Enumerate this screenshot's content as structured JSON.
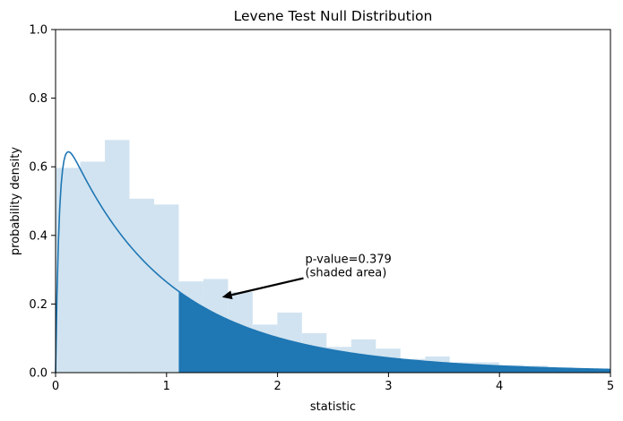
{
  "chart_data": {
    "type": "histogram",
    "title": "Levene Test Null Distribution",
    "xlabel": "statistic",
    "ylabel": "probability density",
    "xlim": [
      0,
      5
    ],
    "ylim": [
      0,
      1.0
    ],
    "xticks": [
      0,
      1,
      2,
      3,
      4,
      5
    ],
    "xtick_labels": [
      "0",
      "1",
      "2",
      "3",
      "4",
      "5"
    ],
    "yticks": [
      0,
      0.2,
      0.4,
      0.6,
      0.8,
      1.0
    ],
    "ytick_labels": [
      "0.0",
      "0.2",
      "0.4",
      "0.6",
      "0.8",
      "1.0"
    ],
    "histogram": {
      "bin_width": 0.222,
      "bins": [
        {
          "x0": 0.0,
          "x1": 0.222,
          "y": 0.597
        },
        {
          "x0": 0.222,
          "x1": 0.444,
          "y": 0.615
        },
        {
          "x0": 0.444,
          "x1": 0.666,
          "y": 0.678
        },
        {
          "x0": 0.666,
          "x1": 0.888,
          "y": 0.507
        },
        {
          "x0": 0.888,
          "x1": 1.11,
          "y": 0.49
        },
        {
          "x0": 1.11,
          "x1": 1.332,
          "y": 0.266
        },
        {
          "x0": 1.332,
          "x1": 1.554,
          "y": 0.273
        },
        {
          "x0": 1.554,
          "x1": 1.776,
          "y": 0.235
        },
        {
          "x0": 1.776,
          "x1": 1.998,
          "y": 0.14
        },
        {
          "x0": 1.998,
          "x1": 2.22,
          "y": 0.175
        },
        {
          "x0": 2.22,
          "x1": 2.442,
          "y": 0.115
        },
        {
          "x0": 2.442,
          "x1": 2.664,
          "y": 0.075
        },
        {
          "x0": 2.664,
          "x1": 2.886,
          "y": 0.097
        },
        {
          "x0": 2.886,
          "x1": 3.108,
          "y": 0.07
        },
        {
          "x0": 3.108,
          "x1": 3.33,
          "y": 0.04
        },
        {
          "x0": 3.33,
          "x1": 3.552,
          "y": 0.047
        },
        {
          "x0": 3.552,
          "x1": 3.774,
          "y": 0.03
        },
        {
          "x0": 3.774,
          "x1": 3.996,
          "y": 0.03
        },
        {
          "x0": 3.996,
          "x1": 4.218,
          "y": 0.022
        },
        {
          "x0": 4.218,
          "x1": 4.44,
          "y": 0.02
        },
        {
          "x0": 4.44,
          "x1": 4.662,
          "y": 0.015
        },
        {
          "x0": 4.662,
          "x1": 4.884,
          "y": 0.012
        },
        {
          "x0": 4.884,
          "x1": 5.0,
          "y": 0.01
        }
      ]
    },
    "density_curve": {
      "distribution": "F",
      "dfn": 2,
      "dfd": 17,
      "x_min": 0.0,
      "x_max": 5.0
    },
    "shaded_region": {
      "x_from": 1.11,
      "x_to": 5.0
    },
    "annotation": {
      "lines": [
        "p-value=0.379",
        "(shaded area)"
      ],
      "text_x": 2.25,
      "text_y": 0.33,
      "arrow_to_x": 1.5,
      "arrow_to_y": 0.22
    },
    "colors": {
      "hist_fill": "#d1e3f0",
      "curve": "#1f77b4",
      "shade": "#1f77b4",
      "axis": "#000000",
      "arrow": "#000000"
    }
  }
}
